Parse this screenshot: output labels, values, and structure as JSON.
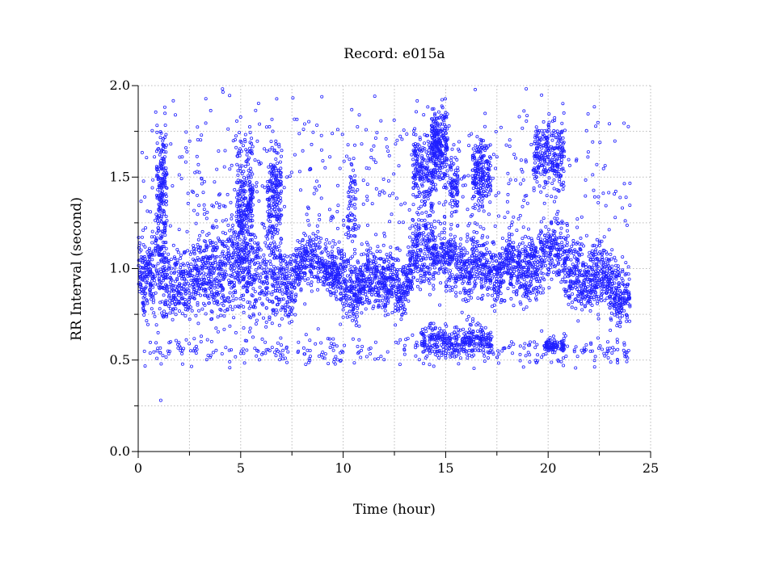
{
  "chart_data": {
    "type": "scatter",
    "title": "Record:  e015a",
    "xlabel": "Time (hour)",
    "ylabel": "RR Interval (second)",
    "xlim": [
      0,
      25
    ],
    "ylim": [
      0,
      2.0
    ],
    "xticks": [
      "0",
      "5",
      "10",
      "15",
      "20",
      "25"
    ],
    "yticks": [
      "0.0",
      "0.5",
      "1.0",
      "1.5",
      "2.0"
    ],
    "grid": true,
    "marker": "open-circle",
    "color": "#2020ff",
    "note": "Dense RR-interval scatter (~24 h); points described as trend (hour, center RR, spread) plus clusters",
    "trend": [
      [
        0.0,
        1.0,
        0.14
      ],
      [
        0.5,
        0.95,
        0.12
      ],
      [
        1.0,
        1.05,
        0.22
      ],
      [
        1.5,
        0.92,
        0.1
      ],
      [
        2.0,
        0.9,
        0.09
      ],
      [
        2.5,
        0.93,
        0.1
      ],
      [
        3.0,
        0.97,
        0.13
      ],
      [
        3.5,
        0.98,
        0.15
      ],
      [
        4.0,
        0.97,
        0.15
      ],
      [
        4.5,
        1.0,
        0.15
      ],
      [
        5.0,
        1.05,
        0.18
      ],
      [
        5.5,
        1.02,
        0.16
      ],
      [
        6.0,
        0.95,
        0.13
      ],
      [
        6.5,
        0.97,
        0.15
      ],
      [
        7.0,
        0.92,
        0.12
      ],
      [
        7.5,
        0.9,
        0.1
      ],
      [
        8.0,
        1.05,
        0.08
      ],
      [
        8.5,
        1.07,
        0.07
      ],
      [
        9.0,
        1.02,
        0.07
      ],
      [
        9.5,
        0.98,
        0.07
      ],
      [
        10.0,
        0.95,
        0.09
      ],
      [
        10.5,
        0.85,
        0.1
      ],
      [
        11.0,
        0.95,
        0.1
      ],
      [
        11.5,
        0.96,
        0.09
      ],
      [
        12.0,
        0.92,
        0.08
      ],
      [
        12.5,
        0.9,
        0.09
      ],
      [
        13.0,
        0.88,
        0.09
      ],
      [
        13.5,
        1.1,
        0.1
      ],
      [
        14.0,
        1.08,
        0.12
      ],
      [
        14.5,
        1.1,
        0.1
      ],
      [
        15.0,
        1.07,
        0.1
      ],
      [
        15.5,
        1.05,
        0.1
      ],
      [
        16.0,
        0.98,
        0.1
      ],
      [
        16.5,
        1.05,
        0.1
      ],
      [
        17.0,
        1.0,
        0.1
      ],
      [
        17.5,
        0.95,
        0.09
      ],
      [
        18.0,
        1.05,
        0.1
      ],
      [
        18.5,
        1.0,
        0.1
      ],
      [
        19.0,
        1.0,
        0.11
      ],
      [
        19.5,
        1.02,
        0.1
      ],
      [
        20.0,
        1.1,
        0.1
      ],
      [
        20.5,
        1.12,
        0.1
      ],
      [
        21.0,
        1.0,
        0.1
      ],
      [
        21.5,
        0.95,
        0.1
      ],
      [
        22.0,
        0.92,
        0.1
      ],
      [
        22.5,
        1.0,
        0.11
      ],
      [
        23.0,
        0.9,
        0.1
      ],
      [
        23.5,
        0.85,
        0.09
      ],
      [
        24.0,
        0.85,
        0.09
      ]
    ],
    "clusters": [
      {
        "hours": [
          0.9,
          1.4
        ],
        "center": 1.45,
        "spread": 0.15,
        "count": 160
      },
      {
        "hours": [
          4.8,
          5.6
        ],
        "center": 1.4,
        "spread": 0.16,
        "count": 220
      },
      {
        "hours": [
          6.3,
          7.0
        ],
        "center": 1.42,
        "spread": 0.14,
        "count": 180
      },
      {
        "hours": [
          10.2,
          10.6
        ],
        "center": 1.35,
        "spread": 0.12,
        "count": 60
      },
      {
        "hours": [
          13.4,
          14.4
        ],
        "center": 1.55,
        "spread": 0.12,
        "count": 200
      },
      {
        "hours": [
          14.3,
          15.1
        ],
        "center": 1.68,
        "spread": 0.1,
        "count": 260
      },
      {
        "hours": [
          15.2,
          15.6
        ],
        "center": 1.45,
        "spread": 0.08,
        "count": 80
      },
      {
        "hours": [
          16.3,
          17.2
        ],
        "center": 1.52,
        "spread": 0.09,
        "count": 200
      },
      {
        "hours": [
          19.3,
          20.8
        ],
        "center": 1.62,
        "spread": 0.1,
        "count": 260
      },
      {
        "hours": [
          13.8,
          17.3
        ],
        "center": 0.61,
        "spread": 0.04,
        "count": 320
      },
      {
        "hours": [
          19.8,
          20.8
        ],
        "center": 0.58,
        "spread": 0.02,
        "count": 90
      },
      {
        "hours": [
          0.3,
          24.0
        ],
        "center": 0.55,
        "spread": 0.04,
        "count": 350
      },
      {
        "hours": [
          0.0,
          24.0
        ],
        "center": 1.45,
        "spread": 0.28,
        "count": 600
      }
    ]
  }
}
